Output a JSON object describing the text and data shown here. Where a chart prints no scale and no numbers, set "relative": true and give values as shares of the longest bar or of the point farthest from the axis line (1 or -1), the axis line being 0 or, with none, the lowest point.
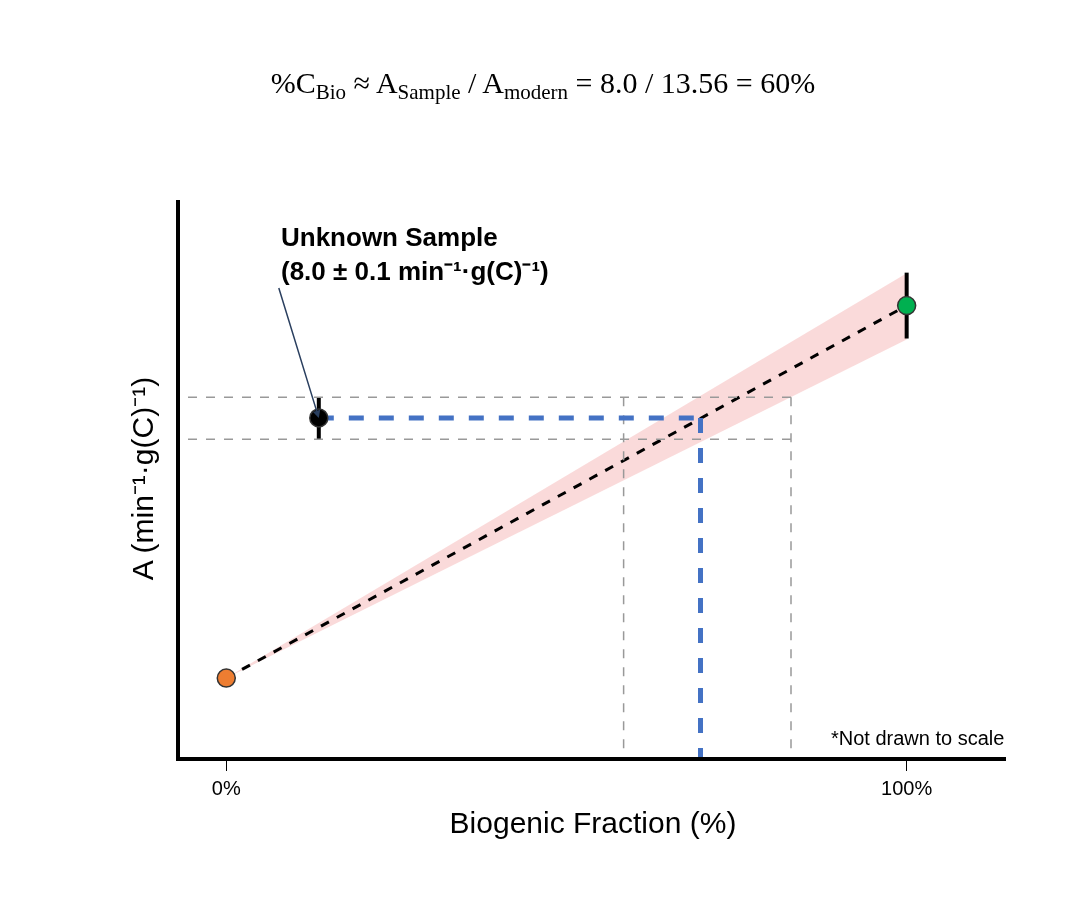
{
  "chart_data": {
    "type": "line",
    "relative": true,
    "title": "%C$_{Bio}$ ≈ A$_{Sample}$ / A$_{modern}$ = 8.0 / 13.56 = 60%",
    "xlabel": "Biogenic Fraction (%)",
    "ylabel": "A (min⁻¹·g(C)⁻¹)",
    "xlim": [
      -6.8,
      114.6
    ],
    "xticks": [
      {
        "value": 0,
        "label": "0%"
      },
      {
        "value": 100,
        "label": "100%"
      }
    ],
    "tick_labels": "x",
    "series": [
      {
        "x": [
          0,
          100
        ],
        "values": [
          0.163,
          0.932
        ],
        "color": "#000000",
        "line_style": "dashed",
        "marker": "none",
        "lower": [
          0.163,
          0.862
        ],
        "upper": [
          0.163,
          0.999
        ]
      },
      {
        "type": "scatter",
        "x": [
          0
        ],
        "values": [
          0.163
        ],
        "color": "#ed7d31",
        "marker": "circle"
      },
      {
        "x": [
          100,
          100
        ],
        "values": [
          0.864,
          1
        ],
        "color": "#000000",
        "marker": "none"
      },
      {
        "x": [
          13.6,
          13.6
        ],
        "values": [
          0.656,
          0.743
        ],
        "color": "#000000",
        "marker": "none"
      },
      {
        "type": "scatter",
        "x": [
          100
        ],
        "values": [
          0.932
        ],
        "color": "#00b050",
        "marker": "circle"
      },
      {
        "type": "scatter",
        "x": [
          13.6
        ],
        "values": [
          0.7
        ],
        "color": "#000000",
        "marker": "circle"
      },
      {
        "x": [
          83.0,
          -6.8
        ],
        "values": [
          0.743,
          0.743
        ],
        "color": "#999999",
        "line_style": "dashed",
        "marker": "none"
      },
      {
        "x": [
          83.0,
          -6.8
        ],
        "values": [
          0.656,
          0.656
        ],
        "color": "#999999",
        "line_style": "dashed",
        "marker": "none"
      },
      {
        "x": [
          58.4,
          58.4
        ],
        "values": [
          0.743,
          0
        ],
        "color": "#999999",
        "line_style": "dashed",
        "marker": "none"
      },
      {
        "x": [
          83.0,
          83.0
        ],
        "values": [
          0.743,
          0
        ],
        "color": "#999999",
        "line_style": "dashed",
        "marker": "none"
      },
      {
        "x": [
          13.6,
          69.7
        ],
        "values": [
          0.7,
          0.7
        ],
        "color": "#4472c4",
        "line_style": "dashed",
        "marker": "none"
      },
      {
        "x": [
          69.7,
          69.7
        ],
        "values": [
          0.7,
          0
        ],
        "color": "#4472c4",
        "line_style": "dashed",
        "marker": "none"
      }
    ],
    "annotations": [
      {
        "text": "Unknown Sample\n(8.0 ± 0.1 min⁻¹·g(C)⁻¹)",
        "x": 13.6,
        "y": 0.7
      },
      "*Not drawn to scale"
    ]
  }
}
